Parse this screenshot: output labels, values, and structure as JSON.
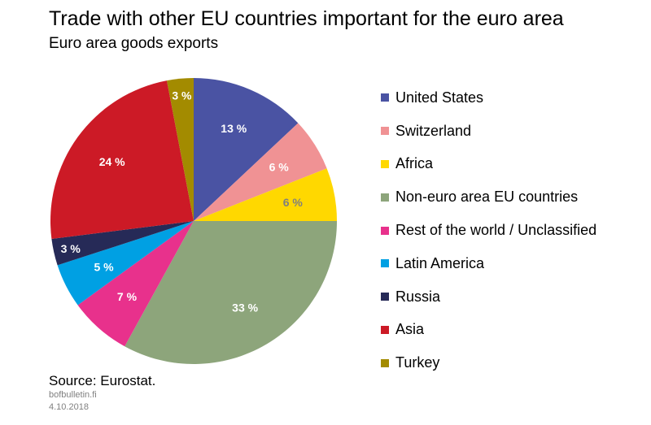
{
  "header": {
    "title": "Trade with other EU countries important for the euro area",
    "subtitle": "Euro area goods exports"
  },
  "footer": {
    "source": "Source: Eurostat.",
    "site": "bofbulletin.fi",
    "date": "4.10.2018"
  },
  "chart_data": {
    "type": "pie",
    "title": "Trade with other EU countries important for the euro area",
    "subtitle": "Euro area goods exports",
    "unit": "%",
    "start": "12 o'clock, clockwise",
    "legend_position": "right",
    "slices": [
      {
        "name": "United States",
        "value": 13,
        "label": "13 %",
        "color": "#4a53a3",
        "label_color": "#ffffff"
      },
      {
        "name": "Switzerland",
        "value": 6,
        "label": "6 %",
        "color": "#f09294",
        "label_color": "#ffffff"
      },
      {
        "name": "Africa",
        "value": 6,
        "label": "6 %",
        "color": "#ffd800",
        "label_color": "#7f7f7f"
      },
      {
        "name": "Non-euro area EU countries",
        "value": 33,
        "label": "33 %",
        "color": "#8da57b",
        "label_color": "#ffffff"
      },
      {
        "name": "Rest of the world / Unclassified",
        "value": 7,
        "label": "7 %",
        "color": "#e8318c",
        "label_color": "#ffffff"
      },
      {
        "name": "Latin America",
        "value": 5,
        "label": "5 %",
        "color": "#00a0e3",
        "label_color": "#ffffff"
      },
      {
        "name": "Russia",
        "value": 3,
        "label": "3 %",
        "color": "#262a57",
        "label_color": "#ffffff"
      },
      {
        "name": "Asia",
        "value": 24,
        "label": "24 %",
        "color": "#cc1a26",
        "label_color": "#ffffff"
      },
      {
        "name": "Turkey",
        "value": 3,
        "label": "3 %",
        "color": "#a38b00",
        "label_color": "#ffffff"
      }
    ]
  }
}
